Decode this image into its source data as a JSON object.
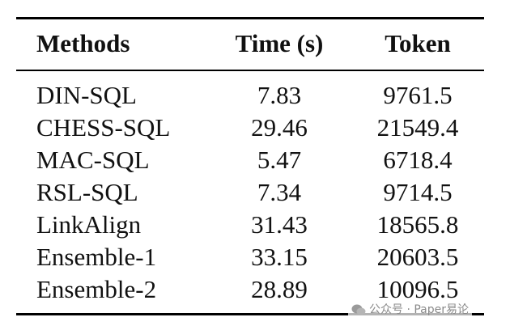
{
  "table": {
    "header": [
      "Methods",
      "Time (s)",
      "Token"
    ],
    "rows": [
      [
        "DIN-SQL",
        "7.83",
        "9761.5"
      ],
      [
        "CHESS-SQL",
        "29.46",
        "21549.4"
      ],
      [
        "MAC-SQL",
        "5.47",
        "6718.4"
      ],
      [
        "RSL-SQL",
        "7.34",
        "9714.5"
      ],
      [
        "LinkAlign",
        "31.43",
        "18565.8"
      ],
      [
        "Ensemble-1",
        "33.15",
        "20603.5"
      ],
      [
        "Ensemble-2",
        "28.89",
        "10096.5"
      ]
    ]
  },
  "watermark": "公众号 · Paper易论"
}
